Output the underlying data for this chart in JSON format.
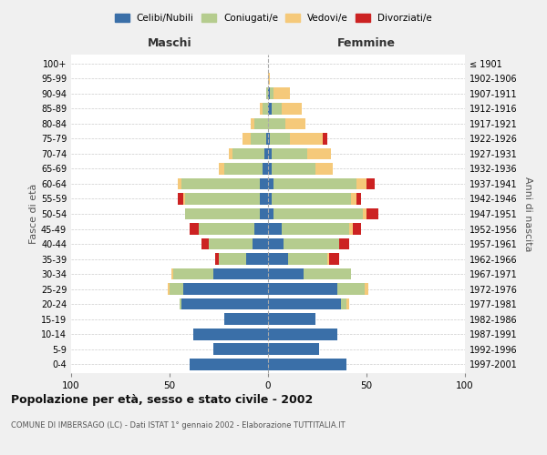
{
  "age_groups": [
    "0-4",
    "5-9",
    "10-14",
    "15-19",
    "20-24",
    "25-29",
    "30-34",
    "35-39",
    "40-44",
    "45-49",
    "50-54",
    "55-59",
    "60-64",
    "65-69",
    "70-74",
    "75-79",
    "80-84",
    "85-89",
    "90-94",
    "95-99",
    "100+"
  ],
  "birth_years": [
    "1997-2001",
    "1992-1996",
    "1987-1991",
    "1982-1986",
    "1977-1981",
    "1972-1976",
    "1967-1971",
    "1962-1966",
    "1957-1961",
    "1952-1956",
    "1947-1951",
    "1942-1946",
    "1937-1941",
    "1932-1936",
    "1927-1931",
    "1922-1926",
    "1917-1921",
    "1912-1916",
    "1907-1911",
    "1902-1906",
    "≤ 1901"
  ],
  "maschi": {
    "celibi": [
      40,
      28,
      38,
      22,
      44,
      43,
      28,
      11,
      8,
      7,
      4,
      4,
      4,
      3,
      2,
      1,
      0,
      0,
      0,
      0,
      0
    ],
    "coniugati": [
      0,
      0,
      0,
      0,
      1,
      7,
      20,
      14,
      22,
      28,
      38,
      38,
      40,
      19,
      16,
      8,
      7,
      3,
      1,
      0,
      0
    ],
    "vedovi": [
      0,
      0,
      0,
      0,
      0,
      1,
      1,
      0,
      0,
      0,
      0,
      1,
      2,
      3,
      2,
      4,
      2,
      1,
      0,
      0,
      0
    ],
    "divorziati": [
      0,
      0,
      0,
      0,
      0,
      0,
      0,
      2,
      4,
      5,
      0,
      3,
      0,
      0,
      0,
      0,
      0,
      0,
      0,
      0,
      0
    ]
  },
  "femmine": {
    "nubili": [
      40,
      26,
      35,
      24,
      37,
      35,
      18,
      10,
      8,
      7,
      3,
      2,
      3,
      2,
      2,
      1,
      0,
      2,
      1,
      0,
      0
    ],
    "coniugate": [
      0,
      0,
      0,
      0,
      3,
      14,
      24,
      20,
      28,
      34,
      45,
      40,
      42,
      22,
      18,
      10,
      9,
      5,
      2,
      0,
      0
    ],
    "vedove": [
      0,
      0,
      0,
      0,
      1,
      2,
      0,
      1,
      0,
      2,
      2,
      3,
      5,
      9,
      12,
      17,
      10,
      10,
      8,
      1,
      0
    ],
    "divorziate": [
      0,
      0,
      0,
      0,
      0,
      0,
      0,
      5,
      5,
      4,
      6,
      2,
      4,
      0,
      0,
      2,
      0,
      0,
      0,
      0,
      0
    ]
  },
  "colors": {
    "celibi_nubili": "#3a6fa8",
    "coniugati": "#b5cc8e",
    "vedovi": "#f5c97a",
    "divorziati": "#cc2222"
  },
  "title": "Popolazione per età, sesso e stato civile - 2002",
  "subtitle": "COMUNE DI IMBERSAGO (LC) - Dati ISTAT 1° gennaio 2002 - Elaborazione TUTTITALIA.IT",
  "xlabel_maschi": "Maschi",
  "xlabel_femmine": "Femmine",
  "ylabel_left": "Fasce di età",
  "ylabel_right": "Anni di nascita",
  "xmax": 100,
  "bg_color": "#f0f0f0",
  "plot_bg": "#ffffff",
  "legend_labels": [
    "Celibi/Nubili",
    "Coniugati/e",
    "Vedovi/e",
    "Divorziati/e"
  ]
}
